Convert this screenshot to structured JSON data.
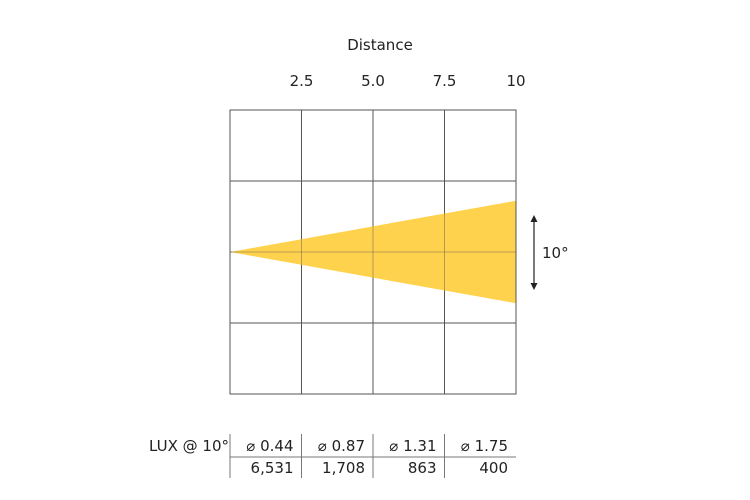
{
  "chart_data": {
    "type": "beam-diagram",
    "title": "Distance",
    "x_ticks": [
      "2.5",
      "5.0",
      "7.5",
      "10"
    ],
    "x_max": 10,
    "beam_angle_deg": 10,
    "beam_angle_label": "10°",
    "beam_color": "#FFD24D",
    "grid_columns": 4,
    "grid_rows": 4
  },
  "table": {
    "row_label": "LUX @ 10°",
    "diameters": [
      "⌀ 0.44",
      "⌀ 0.87",
      "⌀ 1.31",
      "⌀ 1.75"
    ],
    "lux": [
      "6,531",
      "1,708",
      "863",
      "400"
    ]
  }
}
